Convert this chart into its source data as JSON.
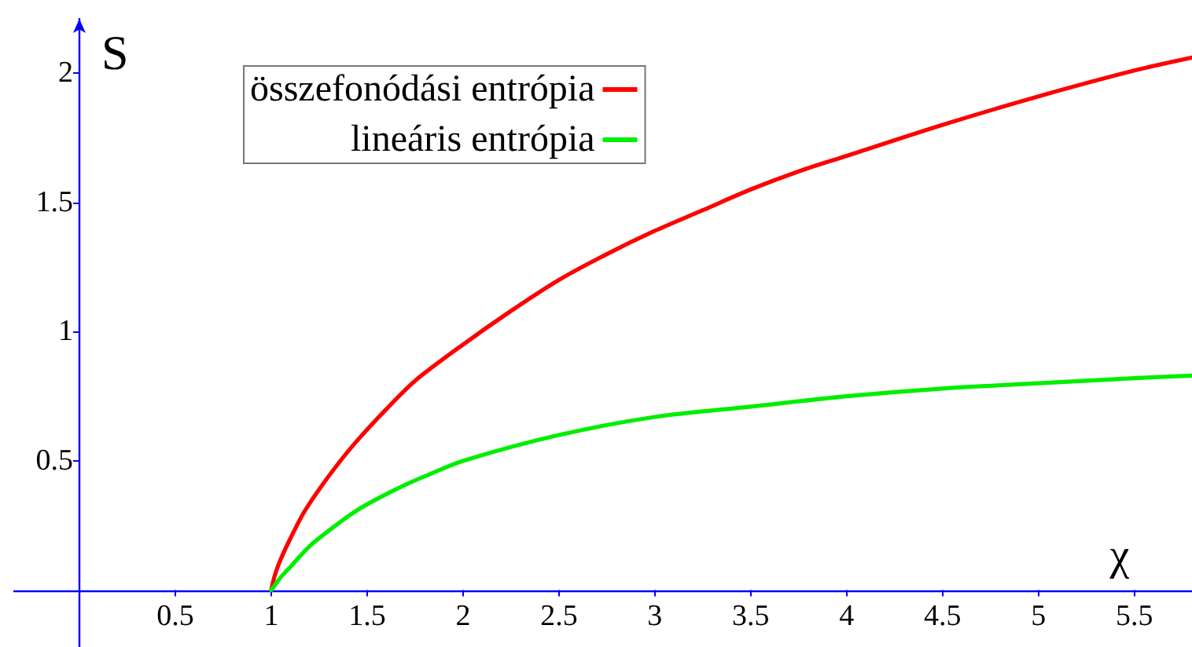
{
  "chart_data": {
    "type": "line",
    "xlabel": "χ",
    "ylabel": "S",
    "xlim": [
      -0.34,
      5.8
    ],
    "ylim": [
      -0.22,
      2.21
    ],
    "xticks": [
      0.5,
      1,
      1.5,
      2,
      2.5,
      3,
      3.5,
      4,
      4.5,
      5,
      5.5
    ],
    "yticks": [
      0.5,
      1,
      1.5,
      2
    ],
    "grid": false,
    "legend": "top left",
    "marker": "none",
    "line_style": "solid",
    "series": [
      {
        "name": "összefonódási entrópia",
        "color": "#ff0000",
        "x": [
          1,
          1.02,
          1.05,
          1.1,
          1.17,
          1.25,
          1.35,
          1.45,
          1.6,
          1.75,
          2,
          2.25,
          2.5,
          2.75,
          3,
          3.25,
          3.5,
          3.75,
          4,
          4.5,
          5,
          5.5,
          5.8
        ],
        "values": [
          0,
          0.06,
          0.12,
          0.2,
          0.3,
          0.39,
          0.49,
          0.58,
          0.7,
          0.81,
          0.95,
          1.08,
          1.2,
          1.3,
          1.39,
          1.47,
          1.55,
          1.62,
          1.68,
          1.8,
          1.91,
          2.01,
          2.06
        ]
      },
      {
        "name": "lineáris entrópia",
        "color": "#00ee00",
        "x": [
          1,
          1.02,
          1.05,
          1.1,
          1.2,
          1.3,
          1.45,
          1.65,
          1.8,
          2,
          2.5,
          3,
          3.5,
          4,
          4.5,
          5,
          5.5,
          5.8
        ],
        "values": [
          0,
          0.02,
          0.05,
          0.09,
          0.17,
          0.23,
          0.31,
          0.39,
          0.44,
          0.5,
          0.6,
          0.67,
          0.71,
          0.75,
          0.78,
          0.8,
          0.82,
          0.83
        ]
      }
    ]
  }
}
